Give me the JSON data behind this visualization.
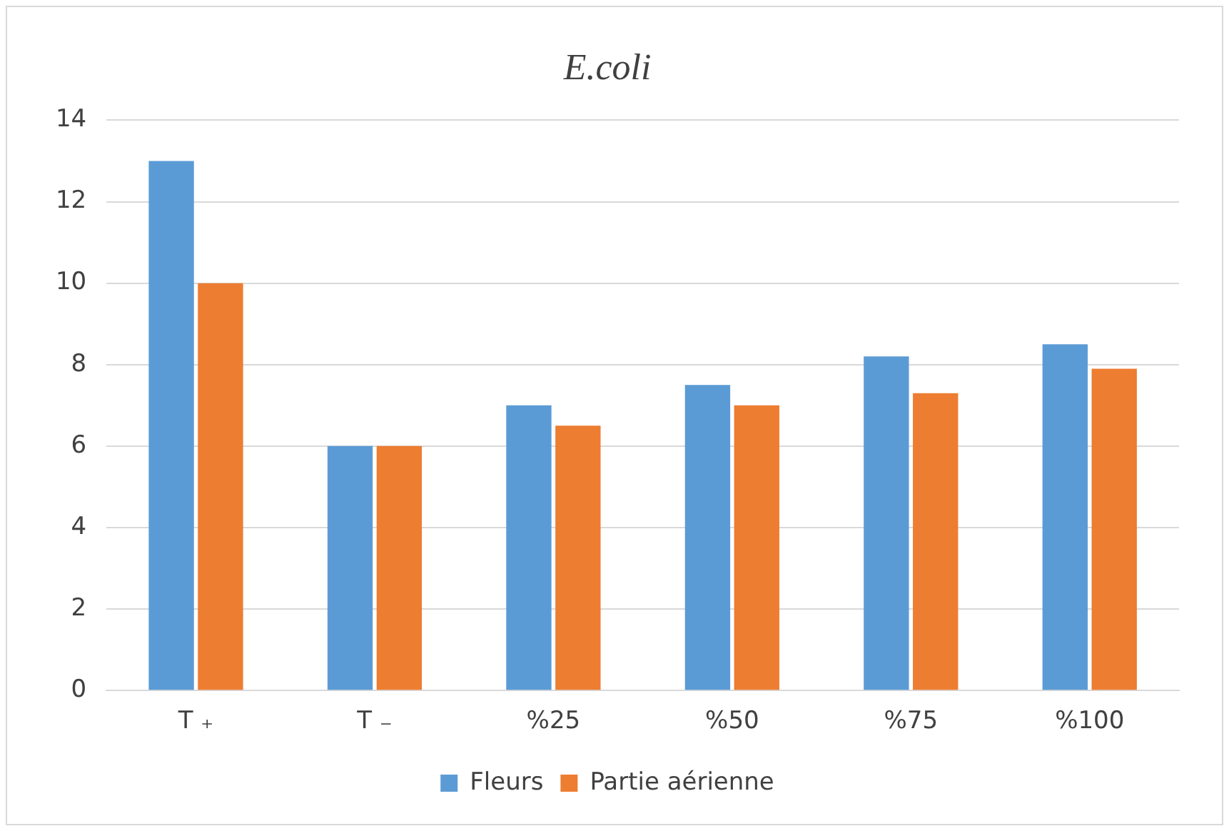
{
  "chart_data": {
    "type": "bar",
    "title": "E.coli",
    "categories": [
      "T ₊",
      "T ₋",
      "%25",
      "%50",
      "%75",
      "%100"
    ],
    "series": [
      {
        "name": "Fleurs",
        "color": "#5b9bd5",
        "values": [
          13,
          6,
          7,
          7.5,
          8.2,
          8.5
        ]
      },
      {
        "name": "Partie aérienne",
        "color": "#ed7d31",
        "values": [
          10,
          6,
          6.5,
          7,
          7.3,
          7.9
        ]
      }
    ],
    "ylim": [
      0,
      14
    ],
    "yticks": [
      0,
      2,
      4,
      6,
      8,
      10,
      12,
      14
    ],
    "grid": "y",
    "legend": "bottom"
  }
}
